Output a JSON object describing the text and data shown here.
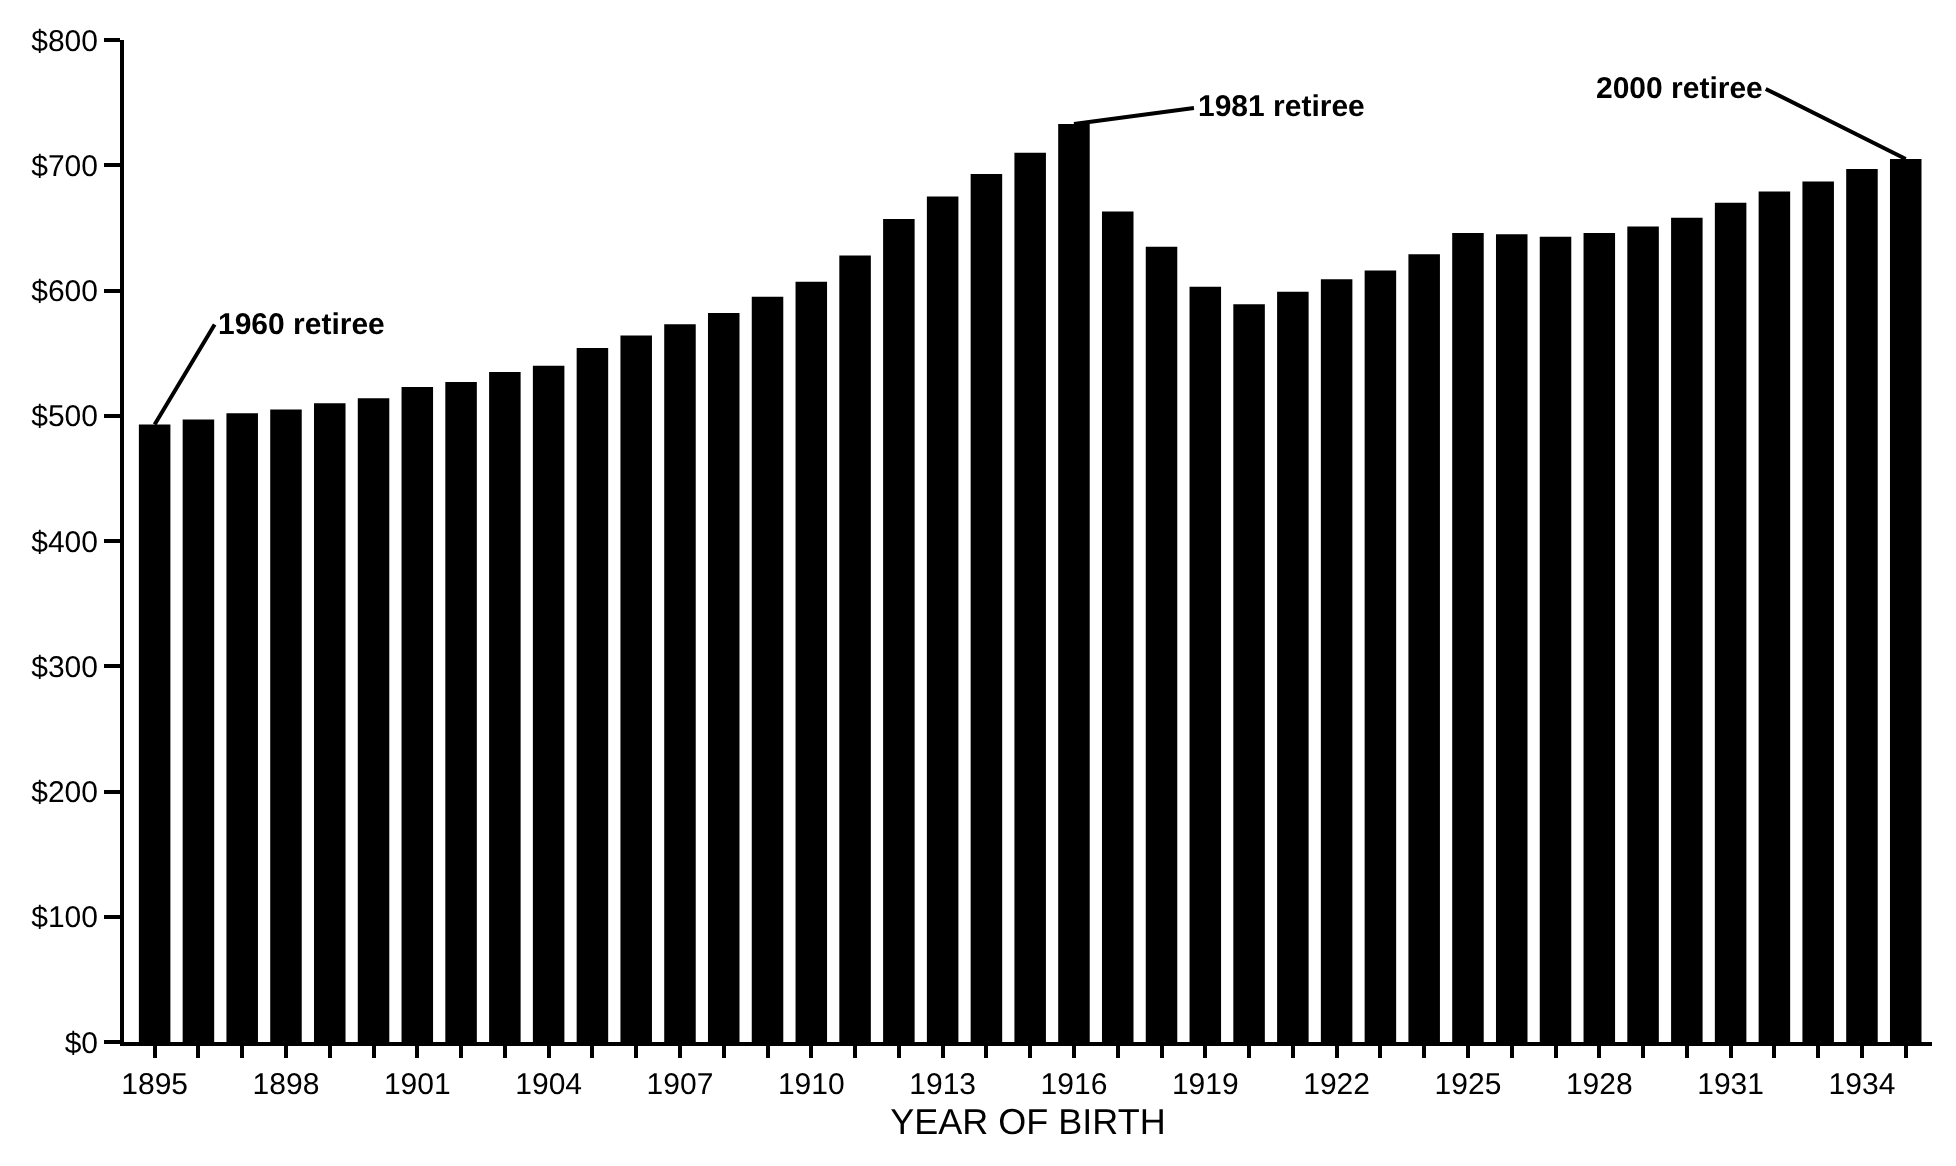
{
  "chart_data": {
    "type": "bar",
    "xlabel": "YEAR OF BIRTH",
    "x": [
      1895,
      1896,
      1897,
      1898,
      1899,
      1900,
      1901,
      1902,
      1903,
      1904,
      1905,
      1906,
      1907,
      1908,
      1909,
      1910,
      1911,
      1912,
      1913,
      1914,
      1915,
      1916,
      1917,
      1918,
      1919,
      1920,
      1921,
      1922,
      1923,
      1924,
      1925,
      1926,
      1927,
      1928,
      1929,
      1930,
      1931,
      1932,
      1933,
      1934,
      1935
    ],
    "values": [
      493,
      497,
      502,
      505,
      510,
      514,
      523,
      527,
      535,
      540,
      554,
      564,
      573,
      582,
      595,
      607,
      628,
      657,
      675,
      693,
      710,
      733,
      663,
      635,
      603,
      589,
      599,
      609,
      616,
      629,
      646,
      645,
      643,
      646,
      651,
      658,
      670,
      679,
      687,
      697,
      705
    ],
    "color": "#000000",
    "xlim": [
      1894.3,
      1935.6
    ],
    "xticks": [
      1895,
      {
        "value": 1896,
        "label": null
      },
      {
        "value": 1897,
        "label": null
      },
      1898,
      {
        "value": 1899,
        "label": null
      },
      {
        "value": 1900,
        "label": null
      },
      1901,
      {
        "value": 1902,
        "label": null
      },
      {
        "value": 1903,
        "label": null
      },
      1904,
      {
        "value": 1905,
        "label": null
      },
      {
        "value": 1906,
        "label": null
      },
      1907,
      {
        "value": 1908,
        "label": null
      },
      {
        "value": 1909,
        "label": null
      },
      1910,
      {
        "value": 1911,
        "label": null
      },
      {
        "value": 1912,
        "label": null
      },
      1913,
      {
        "value": 1914,
        "label": null
      },
      {
        "value": 1915,
        "label": null
      },
      1916,
      {
        "value": 1917,
        "label": null
      },
      {
        "value": 1918,
        "label": null
      },
      1919,
      {
        "value": 1920,
        "label": null
      },
      {
        "value": 1921,
        "label": null
      },
      1922,
      {
        "value": 1923,
        "label": null
      },
      {
        "value": 1924,
        "label": null
      },
      1925,
      {
        "value": 1926,
        "label": null
      },
      {
        "value": 1927,
        "label": null
      },
      1928,
      {
        "value": 1929,
        "label": null
      },
      {
        "value": 1930,
        "label": null
      },
      1931,
      {
        "value": 1932,
        "label": null
      },
      {
        "value": 1933,
        "label": null
      },
      1934,
      {
        "value": 1935,
        "label": null
      }
    ],
    "ylim": [
      0,
      800
    ],
    "yticks": [
      {
        "value": 0,
        "label": "$0"
      },
      {
        "value": 100,
        "label": "$100"
      },
      {
        "value": 200,
        "label": "$200"
      },
      {
        "value": 300,
        "label": "$300"
      },
      {
        "value": 400,
        "label": "$400"
      },
      {
        "value": 500,
        "label": "$500"
      },
      {
        "value": 600,
        "label": "$600"
      },
      {
        "value": 700,
        "label": "$700"
      },
      {
        "value": 800,
        "label": "$800"
      }
    ],
    "annotations": [
      {
        "text": "1960 retiree",
        "x": 1895,
        "y": 493
      },
      {
        "text": "1981 retiree",
        "x": 1916,
        "y": 733
      },
      {
        "text": "2000 retiree",
        "x": 1935,
        "y": 705
      }
    ]
  }
}
